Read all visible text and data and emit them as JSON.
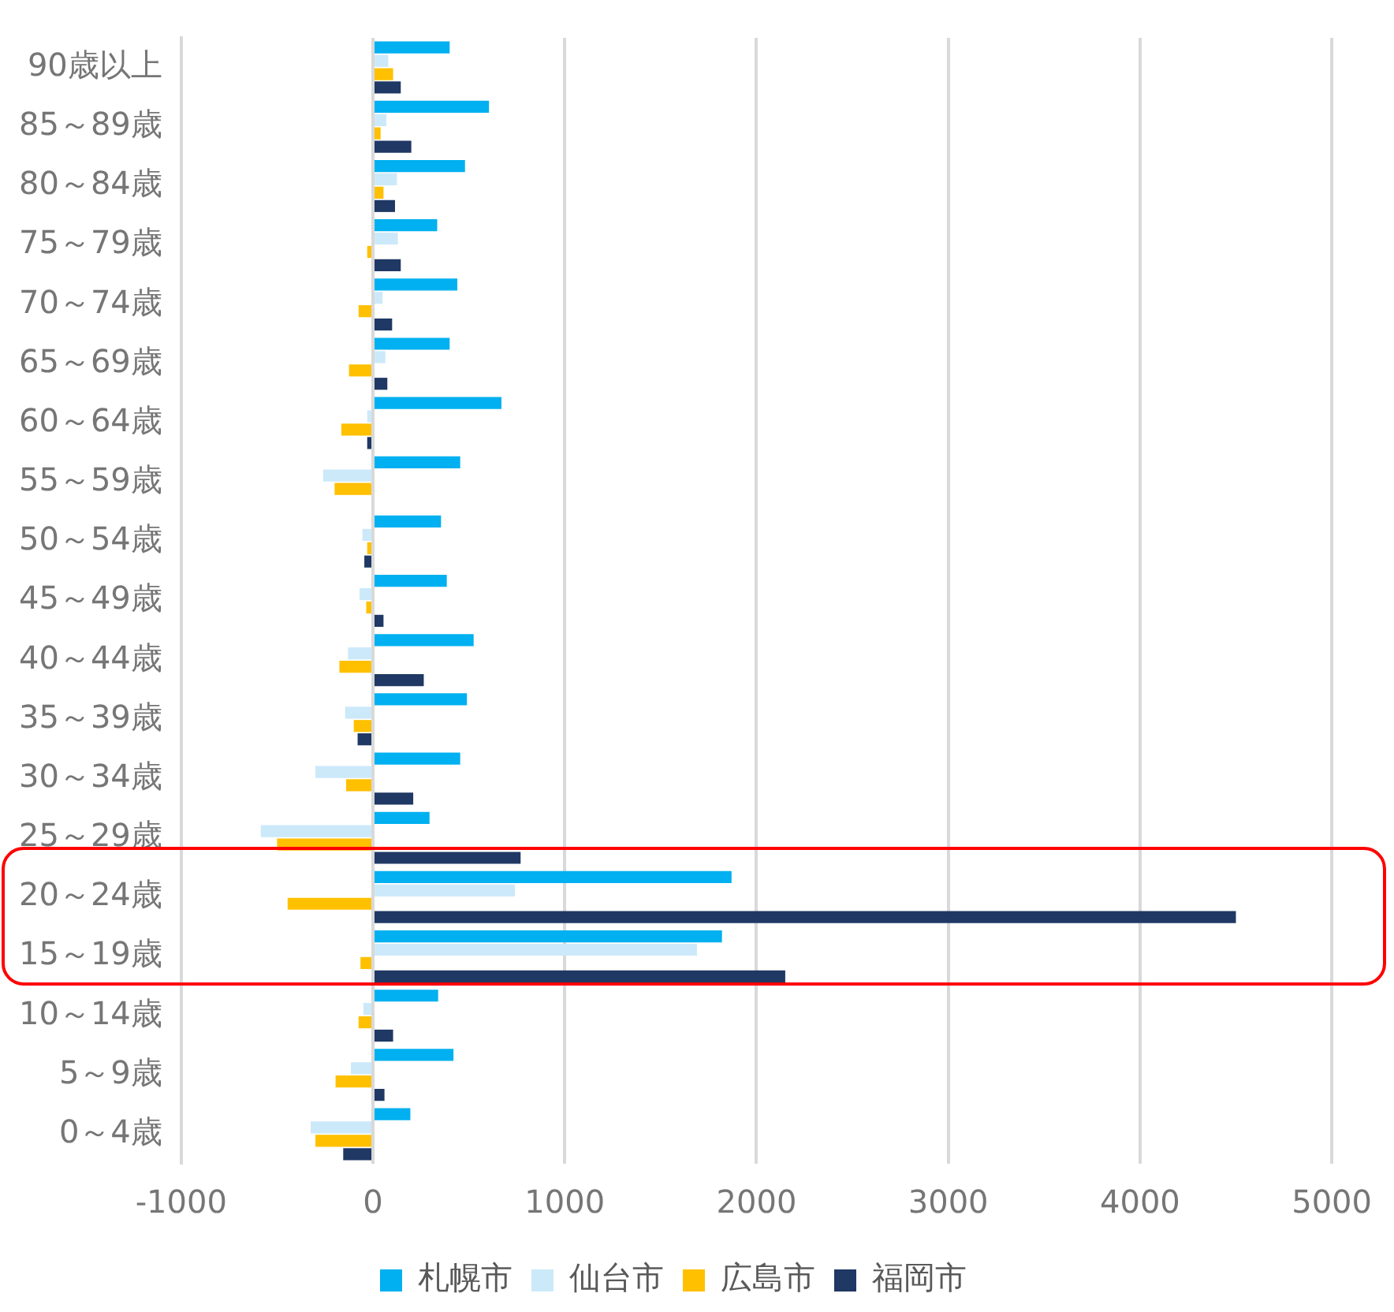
{
  "chart_data": {
    "type": "bar",
    "orientation": "horizontal",
    "categories": [
      "90歳以上",
      "85～89歳",
      "80～84歳",
      "75～79歳",
      "70～74歳",
      "65～69歳",
      "60～64歳",
      "55～59歳",
      "50～54歳",
      "45～49歳",
      "40～44歳",
      "35～39歳",
      "30～34歳",
      "25～29歳",
      "20～24歳",
      "15～19歳",
      "10～14歳",
      "5～9歳",
      "0～4歳"
    ],
    "series": [
      {
        "name": "札幌市",
        "color": "#00b0f0",
        "values": [
          400,
          605,
          480,
          335,
          440,
          400,
          670,
          455,
          355,
          385,
          525,
          490,
          455,
          295,
          1870,
          1820,
          340,
          420,
          195
        ]
      },
      {
        "name": "仙台市",
        "color": "#cce9fa",
        "values": [
          80,
          70,
          125,
          130,
          50,
          65,
          -30,
          -260,
          -55,
          -70,
          -130,
          -145,
          -300,
          -585,
          740,
          1690,
          -50,
          -115,
          -325
        ]
      },
      {
        "name": "広島市",
        "color": "#ffc000",
        "values": [
          105,
          40,
          55,
          -30,
          -75,
          -125,
          -165,
          -200,
          -30,
          -35,
          -175,
          -100,
          -140,
          -500,
          -445,
          -65,
          -75,
          -195,
          -300
        ]
      },
      {
        "name": "福岡市",
        "color": "#1f3864",
        "values": [
          145,
          200,
          115,
          145,
          100,
          75,
          -30,
          0,
          -45,
          55,
          265,
          -80,
          210,
          770,
          4500,
          2150,
          105,
          60,
          -155
        ]
      }
    ],
    "xlim": [
      -1000,
      5000
    ],
    "xticks": [
      -1000,
      0,
      1000,
      2000,
      3000,
      4000,
      5000
    ],
    "grid": "x",
    "legend": "bottom"
  }
}
